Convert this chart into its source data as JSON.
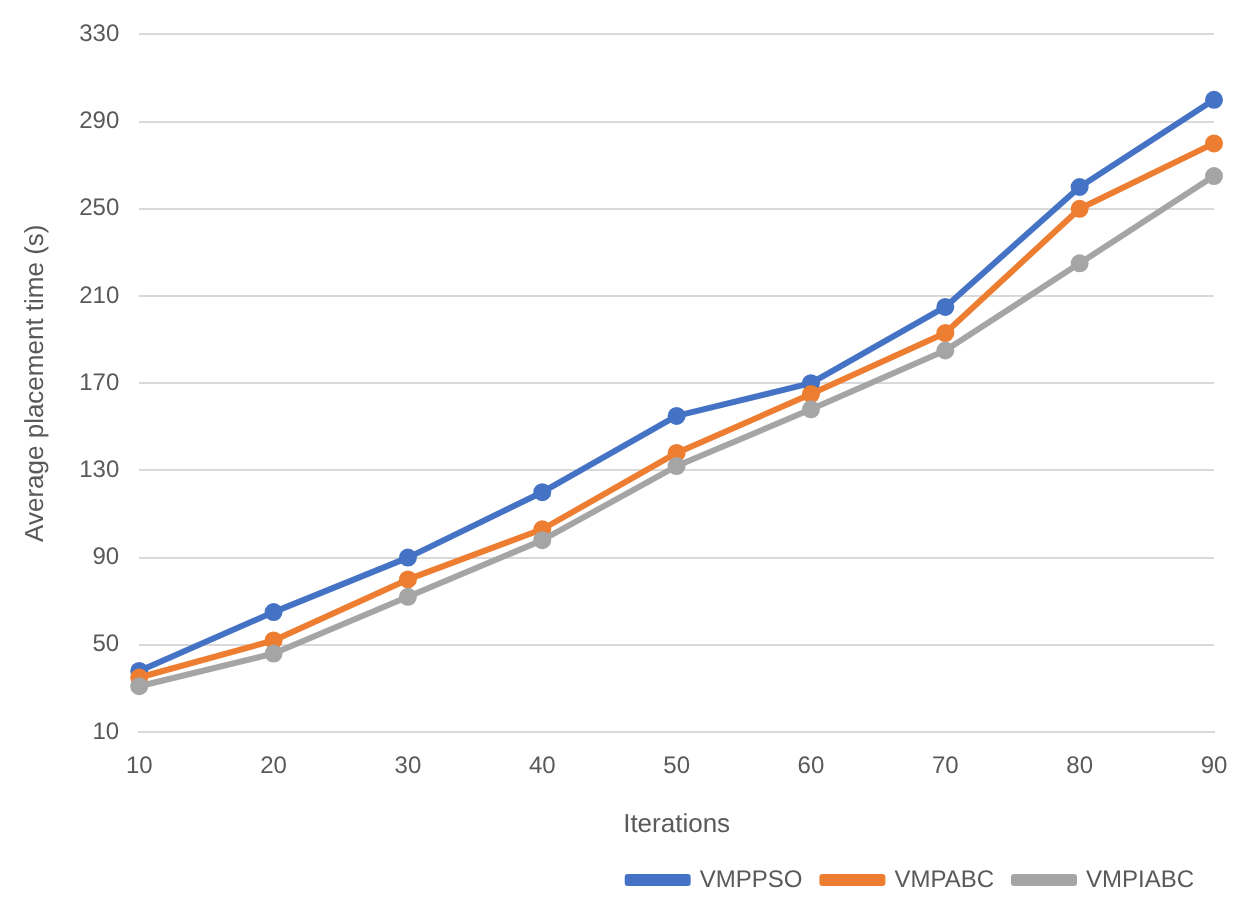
{
  "chart_data": {
    "type": "line",
    "xlabel": "Iterations",
    "ylabel": "Average placement time (s)",
    "categories": [
      "10",
      "20",
      "30",
      "40",
      "50",
      "60",
      "70",
      "80",
      "90"
    ],
    "series": [
      {
        "name": "VMPPSO",
        "color": "#4472c4",
        "values": [
          38,
          65,
          90,
          120,
          155,
          170,
          205,
          260,
          300
        ]
      },
      {
        "name": "VMPABC",
        "color": "#ed7d31",
        "values": [
          35,
          52,
          80,
          103,
          138,
          165,
          193,
          250,
          280
        ]
      },
      {
        "name": "VMPIABC",
        "color": "#a5a5a5",
        "values": [
          31,
          46,
          72,
          98,
          132,
          158,
          185,
          225,
          265
        ]
      }
    ],
    "ylim": [
      10,
      330
    ],
    "yticks": [
      10,
      50,
      90,
      130,
      170,
      210,
      250,
      290,
      330
    ],
    "grid": "y",
    "legend": "bottom",
    "marker": "circle",
    "line_style": "solid"
  }
}
